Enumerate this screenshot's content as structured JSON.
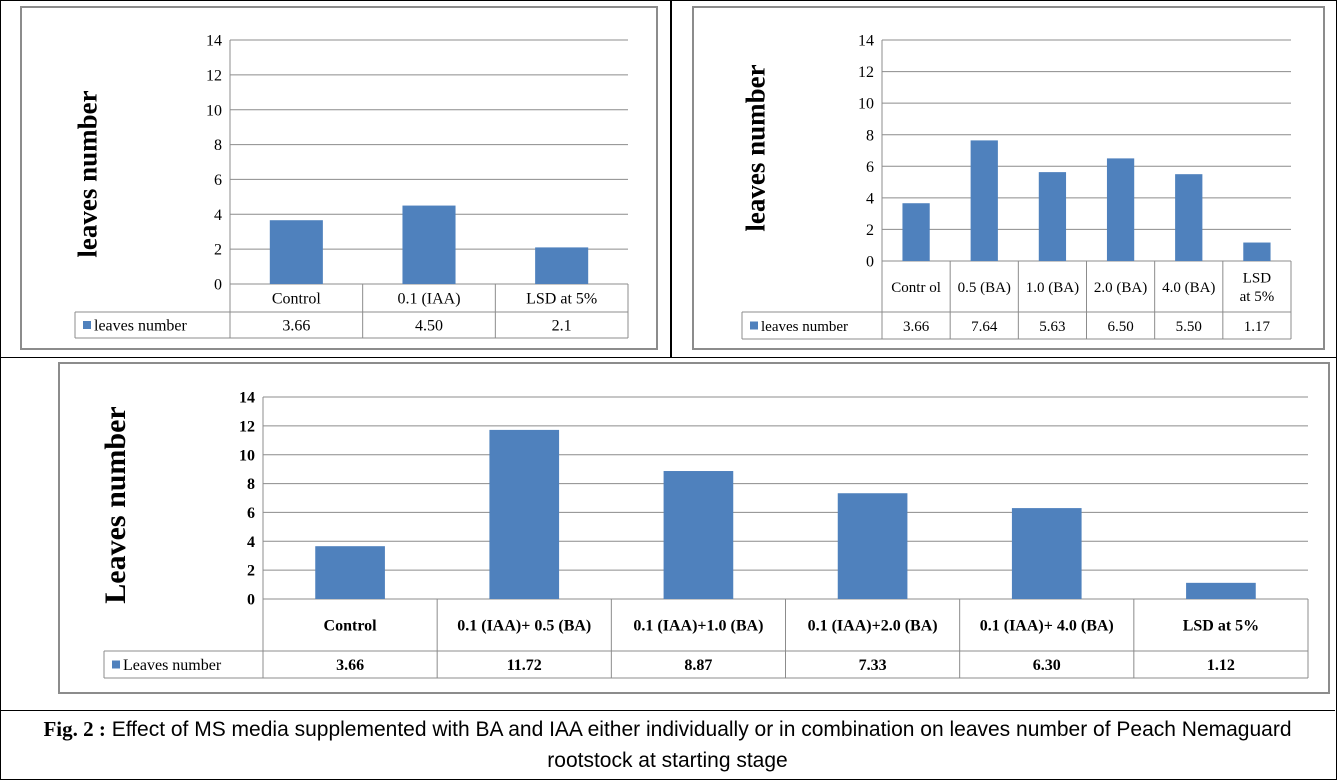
{
  "chart_data": [
    {
      "type": "bar",
      "ylabel": "leaves number",
      "ylim": [
        0,
        14
      ],
      "yticks": [
        "0",
        "2",
        "4",
        "6",
        "8",
        "10",
        "12",
        "14"
      ],
      "categories": [
        "Control",
        "0.1 (IAA)",
        "LSD at 5%"
      ],
      "series": [
        {
          "name": "leaves number",
          "values": [
            3.66,
            4.5,
            2.1
          ],
          "labels": [
            "3.66",
            "4.50",
            "2.1"
          ]
        }
      ],
      "color": "#4f81bd",
      "grid": true,
      "legend": "data-table"
    },
    {
      "type": "bar",
      "ylabel": "leaves number",
      "ylim": [
        0,
        14
      ],
      "yticks": [
        "0",
        "2",
        "4",
        "6",
        "8",
        "10",
        "12",
        "14"
      ],
      "categories": [
        "Contr ol",
        "0.5 (BA)",
        "1.0 (BA)",
        "2.0 (BA)",
        "4.0 (BA)",
        "LSD at 5%"
      ],
      "series": [
        {
          "name": "leaves number",
          "values": [
            3.66,
            7.64,
            5.63,
            6.5,
            5.5,
            1.17
          ],
          "labels": [
            "3.66",
            "7.64",
            "5.63",
            "6.50",
            "5.50",
            "1.17"
          ]
        }
      ],
      "color": "#4f81bd",
      "grid": true,
      "legend": "data-table"
    },
    {
      "type": "bar",
      "ylabel": "Leaves number",
      "ylim": [
        0,
        14
      ],
      "yticks": [
        "0",
        "2",
        "4",
        "6",
        "8",
        "10",
        "12",
        "14"
      ],
      "categories": [
        "Control",
        "0.1 (IAA)+ 0.5 (BA)",
        "0.1 (IAA)+1.0 (BA)",
        "0.1 (IAA)+2.0 (BA)",
        "0.1 (IAA)+ 4.0 (BA)",
        "LSD at 5%"
      ],
      "series": [
        {
          "name": "Leaves number",
          "values": [
            3.66,
            11.72,
            8.87,
            7.33,
            6.3,
            1.12
          ],
          "labels": [
            "3.66",
            "11.72",
            "8.87",
            "7.33",
            "6.30",
            "1.12"
          ]
        }
      ],
      "color": "#4f81bd",
      "grid": true,
      "legend": "data-table",
      "bold": true
    }
  ],
  "caption": {
    "label": "Fig. 2 :",
    "text": " Effect of MS media supplemented with BA and IAA either individually or in combination on leaves number of Peach Nemaguard rootstock at starting stage"
  }
}
